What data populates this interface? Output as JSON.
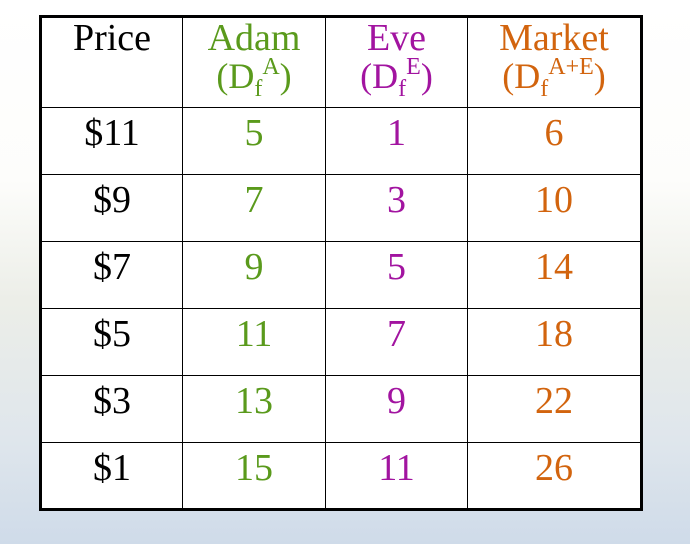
{
  "table": {
    "headers": {
      "price": "Price",
      "adam": {
        "name": "Adam",
        "symbol": "D",
        "sub": "f",
        "sup": "A"
      },
      "eve": {
        "name": "Eve",
        "symbol": "D",
        "sub": "f",
        "sup": "E"
      },
      "market": {
        "name": "Market",
        "symbol": "D",
        "sub": "f",
        "sup": "A+E"
      }
    },
    "rows": [
      {
        "price": "$11",
        "adam": "5",
        "eve": "1",
        "market": "6"
      },
      {
        "price": "$9",
        "adam": "7",
        "eve": "3",
        "market": "10"
      },
      {
        "price": "$7",
        "adam": "9",
        "eve": "5",
        "market": "14"
      },
      {
        "price": "$5",
        "adam": "11",
        "eve": "7",
        "market": "18"
      },
      {
        "price": "$3",
        "adam": "13",
        "eve": "9",
        "market": "22"
      },
      {
        "price": "$1",
        "adam": "15",
        "eve": "11",
        "market": "26"
      }
    ]
  },
  "colors": {
    "adam": "#5a9a1c",
    "eve": "#a214a0",
    "market": "#d2640e",
    "price": "#000000"
  }
}
